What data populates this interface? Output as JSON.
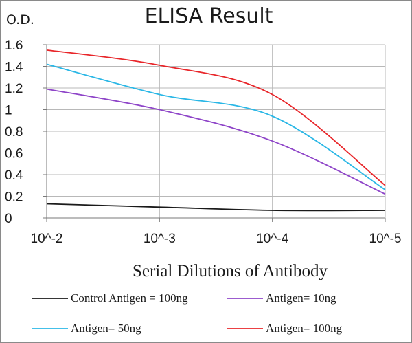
{
  "chart_data": {
    "type": "line",
    "title": "ELISA Result",
    "ylabel": "O.D.",
    "xlabel": "Serial Dilutions  of Antibody",
    "x": [
      "10^-2",
      "10^-3",
      "10^-4",
      "10^-5"
    ],
    "ylim": [
      0,
      1.6
    ],
    "yticks": [
      "0",
      "0.2",
      "0.4",
      "0.6",
      "0.8",
      "1",
      "1.2",
      "1.4",
      "1.6"
    ],
    "grid": true,
    "legend_position": "bottom",
    "series": [
      {
        "name": "Control Antigen = 100ng",
        "color": "#1a1a1a",
        "values": [
          0.13,
          0.1,
          0.07,
          0.07
        ]
      },
      {
        "name": "Antigen= 10ng",
        "color": "#8e44c8",
        "values": [
          1.19,
          1.0,
          0.71,
          0.22
        ]
      },
      {
        "name": "Antigen= 50ng",
        "color": "#2ab7e6",
        "values": [
          1.42,
          1.14,
          0.94,
          0.26
        ]
      },
      {
        "name": "Antigen= 100ng",
        "color": "#e8262a",
        "values": [
          1.55,
          1.41,
          1.14,
          0.3
        ]
      }
    ]
  }
}
